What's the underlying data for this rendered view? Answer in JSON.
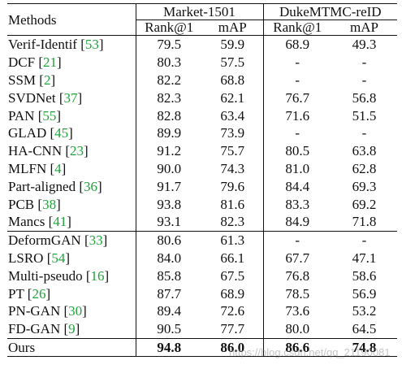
{
  "table": {
    "header": {
      "methods_label": "Methods",
      "groups": [
        {
          "name": "Market-1501",
          "cols": [
            "Rank@1",
            "mAP"
          ]
        },
        {
          "name": "DukeMTMC-reID",
          "cols": [
            "Rank@1",
            "mAP"
          ]
        }
      ]
    },
    "sections": [
      {
        "rows": [
          {
            "method": "Verif-Identif",
            "cite": "53",
            "m_rank1": "79.5",
            "m_map": "59.9",
            "d_rank1": "68.9",
            "d_map": "49.3"
          },
          {
            "method": "DCF",
            "cite": "21",
            "m_rank1": "80.3",
            "m_map": "57.5",
            "d_rank1": "-",
            "d_map": "-"
          },
          {
            "method": "SSM",
            "cite": "2",
            "m_rank1": "82.2",
            "m_map": "68.8",
            "d_rank1": "-",
            "d_map": "-"
          },
          {
            "method": "SVDNet",
            "cite": "37",
            "m_rank1": "82.3",
            "m_map": "62.1",
            "d_rank1": "76.7",
            "d_map": "56.8"
          },
          {
            "method": "PAN",
            "cite": "55",
            "m_rank1": "82.8",
            "m_map": "63.4",
            "d_rank1": "71.6",
            "d_map": "51.5"
          },
          {
            "method": "GLAD",
            "cite": "45",
            "m_rank1": "89.9",
            "m_map": "73.9",
            "d_rank1": "-",
            "d_map": "-"
          },
          {
            "method": "HA-CNN",
            "cite": "23",
            "m_rank1": "91.2",
            "m_map": "75.7",
            "d_rank1": "80.5",
            "d_map": "63.8"
          },
          {
            "method": "MLFN",
            "cite": "4",
            "m_rank1": "90.0",
            "m_map": "74.3",
            "d_rank1": "81.0",
            "d_map": "62.8"
          },
          {
            "method": "Part-aligned",
            "cite": "36",
            "m_rank1": "91.7",
            "m_map": "79.6",
            "d_rank1": "84.4",
            "d_map": "69.3"
          },
          {
            "method": "PCB",
            "cite": "38",
            "m_rank1": "93.8",
            "m_map": "81.6",
            "d_rank1": "83.3",
            "d_map": "69.2"
          },
          {
            "method": "Mancs",
            "cite": "41",
            "m_rank1": "93.1",
            "m_map": "82.3",
            "d_rank1": "84.9",
            "d_map": "71.8"
          }
        ]
      },
      {
        "rows": [
          {
            "method": "DeformGAN",
            "cite": "33",
            "m_rank1": "80.6",
            "m_map": "61.3",
            "d_rank1": "-",
            "d_map": "-"
          },
          {
            "method": "LSRO",
            "cite": "54",
            "m_rank1": "84.0",
            "m_map": "66.1",
            "d_rank1": "67.7",
            "d_map": "47.1"
          },
          {
            "method": "Multi-pseudo",
            "cite": "16",
            "m_rank1": "85.8",
            "m_map": "67.5",
            "d_rank1": "76.8",
            "d_map": "58.6"
          },
          {
            "method": "PT",
            "cite": "26",
            "m_rank1": "87.7",
            "m_map": "68.9",
            "d_rank1": "78.5",
            "d_map": "56.9"
          },
          {
            "method": "PN-GAN",
            "cite": "30",
            "m_rank1": "89.4",
            "m_map": "72.6",
            "d_rank1": "73.6",
            "d_map": "53.2"
          },
          {
            "method": "FD-GAN",
            "cite": "9",
            "m_rank1": "90.5",
            "m_map": "77.7",
            "d_rank1": "80.0",
            "d_map": "64.5"
          }
        ]
      },
      {
        "rows": [
          {
            "method": "Ours",
            "cite": "",
            "m_rank1": "94.8",
            "m_map": "86.0",
            "d_rank1": "86.6",
            "d_map": "74.8",
            "bold": true
          }
        ]
      }
    ]
  },
  "watermark": "https://blog.csdn.net/qq_21190081"
}
